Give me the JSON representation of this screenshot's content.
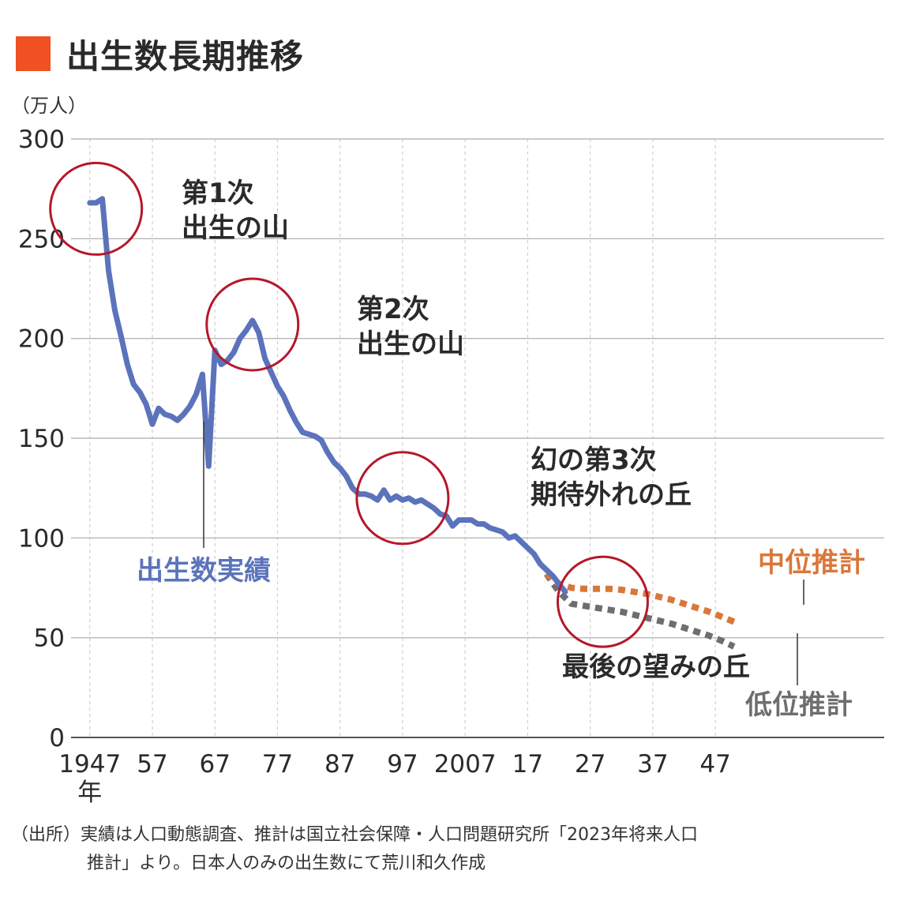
{
  "title": "出生数長期推移",
  "colors": {
    "title_square": "#f05022",
    "actual": "#5b73bb",
    "medium": "#d9773a",
    "low": "#6e6e6e",
    "circle": "#b5182a",
    "grid": "#b8b8b8"
  },
  "chart_data": {
    "type": "line",
    "y_unit_label": "（万人）",
    "ylim": [
      0,
      300
    ],
    "y_ticks": [
      0,
      50,
      100,
      150,
      200,
      250,
      300
    ],
    "xlim": [
      1944,
      2074
    ],
    "x_ticks": [
      {
        "year": 1947,
        "label": "1947"
      },
      {
        "year": 1957,
        "label": "57"
      },
      {
        "year": 1967,
        "label": "67"
      },
      {
        "year": 1977,
        "label": "77"
      },
      {
        "year": 1987,
        "label": "87"
      },
      {
        "year": 1997,
        "label": "97"
      },
      {
        "year": 2007,
        "label": "2007"
      },
      {
        "year": 2017,
        "label": "17"
      },
      {
        "year": 2027,
        "label": "27"
      },
      {
        "year": 2037,
        "label": "37"
      },
      {
        "year": 2047,
        "label": "47"
      }
    ],
    "x_first_suffix": "年",
    "grid": true,
    "series": [
      {
        "key": "actual",
        "name": "出生数実績",
        "style": "solid",
        "x": [
          1947,
          1948,
          1949,
          1950,
          1951,
          1952,
          1953,
          1954,
          1955,
          1956,
          1957,
          1958,
          1959,
          1960,
          1961,
          1962,
          1963,
          1964,
          1965,
          1966,
          1967,
          1968,
          1969,
          1970,
          1971,
          1972,
          1973,
          1974,
          1975,
          1976,
          1977,
          1978,
          1979,
          1980,
          1981,
          1982,
          1983,
          1984,
          1985,
          1986,
          1987,
          1988,
          1989,
          1990,
          1991,
          1992,
          1993,
          1994,
          1995,
          1996,
          1997,
          1998,
          1999,
          2000,
          2001,
          2002,
          2003,
          2004,
          2005,
          2006,
          2007,
          2008,
          2009,
          2010,
          2011,
          2012,
          2013,
          2014,
          2015,
          2016,
          2017,
          2018,
          2019,
          2020,
          2021,
          2022,
          2023
        ],
        "y": [
          268,
          268,
          270,
          234,
          214,
          201,
          187,
          177,
          173,
          167,
          157,
          165,
          162,
          161,
          159,
          162,
          166,
          172,
          182,
          136,
          194,
          187,
          189,
          193,
          200,
          204,
          209,
          203,
          190,
          183,
          176,
          171,
          164,
          158,
          153,
          152,
          151,
          149,
          143,
          138,
          135,
          131,
          125,
          122,
          122,
          121,
          119,
          124,
          119,
          121,
          119,
          120,
          118,
          119,
          117,
          115,
          112,
          111,
          106,
          109,
          109,
          109,
          107,
          107,
          105,
          104,
          103,
          100,
          101,
          98,
          95,
          92,
          87,
          84,
          81,
          77,
          73
        ]
      },
      {
        "key": "medium",
        "name": "中位推計",
        "style": "dashed",
        "x": [
          2020,
          2022,
          2024,
          2026,
          2028,
          2030,
          2032,
          2034,
          2036,
          2038,
          2040,
          2042,
          2044,
          2046,
          2048,
          2050
        ],
        "y": [
          82,
          77,
          75,
          74.5,
          74.5,
          74.5,
          74,
          73,
          72,
          70.5,
          69,
          67,
          65,
          63,
          60.5,
          58
        ]
      },
      {
        "key": "low",
        "name": "低位推計",
        "style": "dashed",
        "x": [
          2020,
          2022,
          2024,
          2026,
          2028,
          2030,
          2032,
          2034,
          2036,
          2038,
          2040,
          2042,
          2044,
          2046,
          2048,
          2050
        ],
        "y": [
          82,
          73,
          67,
          66,
          65,
          64,
          63,
          61.5,
          60,
          58.5,
          57,
          55,
          53,
          51,
          48.5,
          45.5
        ]
      }
    ],
    "annotations": [
      {
        "key": "boom1",
        "lines": [
          "第1次",
          "出生の山"
        ]
      },
      {
        "key": "boom2",
        "lines": [
          "第2次",
          "出生の山"
        ]
      },
      {
        "key": "boom3",
        "lines": [
          "幻の第3次",
          "期待外れの丘"
        ]
      },
      {
        "key": "last_hope",
        "lines": [
          "最後の望みの丘"
        ]
      }
    ]
  },
  "source": {
    "prefix": "（出所）",
    "line1": "実績は人口動態調査、推計は国立社会保障・人口問題研究所「2023年将来人口",
    "line2": "推計」より。日本人のみの出生数にて荒川和久作成"
  }
}
